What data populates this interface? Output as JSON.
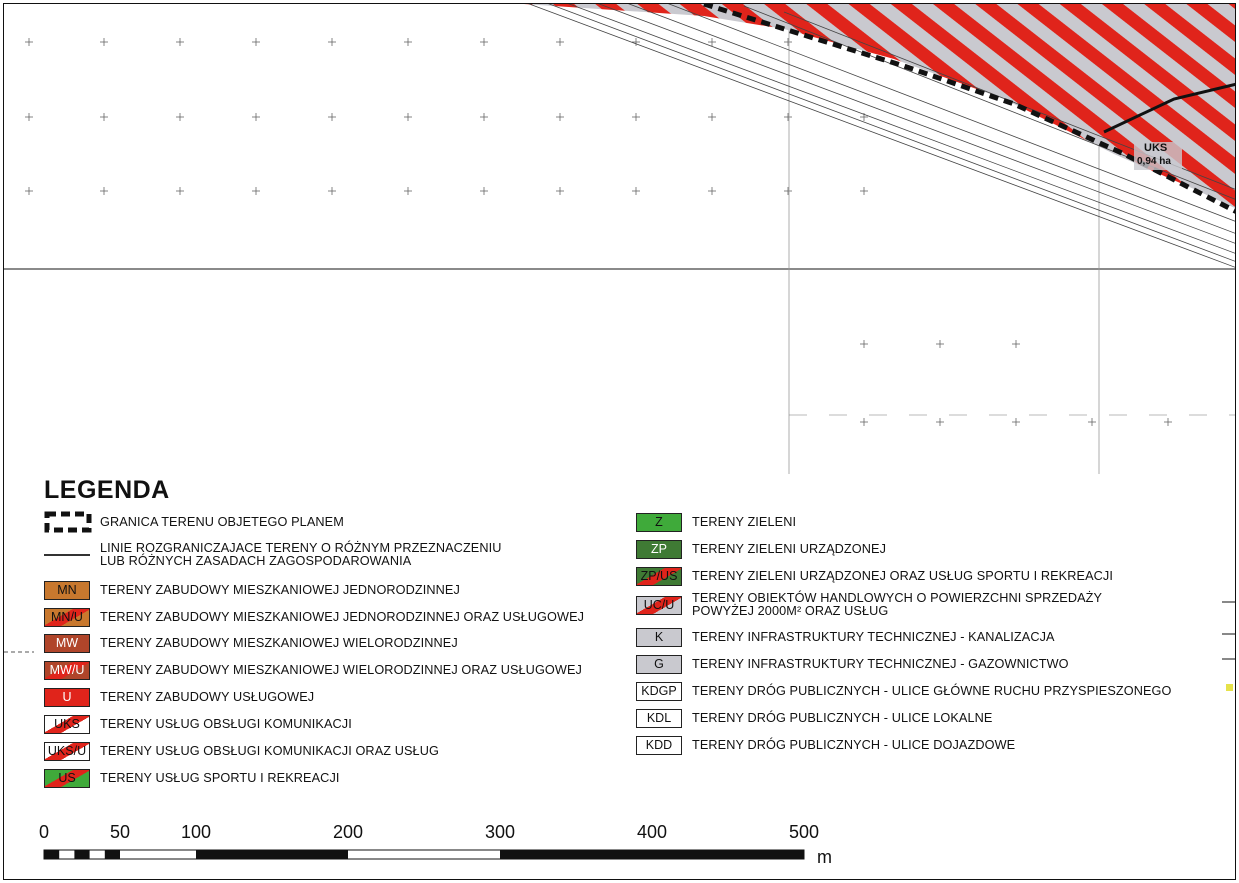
{
  "legend": {
    "title": "LEGENDA",
    "items_left": [
      {
        "code": "",
        "symbol": "boundary-dashed",
        "label": "GRANICA TERENU OBJETEGO PLANEM"
      },
      {
        "code": "",
        "symbol": "line",
        "label": "LINIE ROZGRANICZAJACE TERENY O RÓŻNYM PRZEZNACZENIU",
        "label2": "LUB RÓŻNYCH ZASADACH ZAGOSPODAROWANIA"
      },
      {
        "code": "MN",
        "fill": "#c8782e",
        "stripe": "",
        "label": "TERENY ZABUDOWY MIESZKANIOWEJ JEDNORODZINNEJ"
      },
      {
        "code": "MN/U",
        "fill": "#c8782e",
        "stripe": "#e0241b",
        "label": "TERENY ZABUDOWY MIESZKANIOWEJ JEDNORODZINNEJ ORAZ USŁUGOWEJ"
      },
      {
        "code": "MW",
        "fill": "#b0452a",
        "stripe": "",
        "label": "TERENY ZABUDOWY MIESZKANIOWEJ WIELORODZINNEJ"
      },
      {
        "code": "MW/U",
        "fill": "#b0452a",
        "stripe": "#e0241b",
        "label": "TERENY ZABUDOWY MIESZKANIOWEJ WIELORODZINNEJ ORAZ USŁUGOWEJ"
      },
      {
        "code": "U",
        "fill": "#e0241b",
        "stripe": "",
        "label": "TERENY ZABUDOWY USŁUGOWEJ"
      },
      {
        "code": "UKS",
        "fill": "#ffffff",
        "stripe": "#e0241b",
        "label": "TERENY USŁUG OBSŁUGI KOMUNIKACJI"
      },
      {
        "code": "UKS/U",
        "fill": "#ffffff",
        "stripe": "#e0241b",
        "label": "TERENY USŁUG OBSŁUGI KOMUNIKACJI ORAZ USŁUG"
      },
      {
        "code": "US",
        "fill": "#3faa3a",
        "stripe": "#e0241b",
        "label": "TERENY USŁUG SPORTU I REKREACJI"
      }
    ],
    "items_right": [
      {
        "code": "Z",
        "fill": "#3faa3a",
        "stripe": "",
        "label": "TERENY ZIELENI"
      },
      {
        "code": "ZP",
        "fill": "#3f7a34",
        "stripe": "",
        "label": "TERENY ZIELENI URZĄDZONEJ"
      },
      {
        "code": "ZP/US",
        "fill": "#3f7a34",
        "stripe": "#e0241b",
        "label": "TERENY ZIELENI URZĄDZONEJ ORAZ USŁUG SPORTU I REKREACJI"
      },
      {
        "code": "UC/U",
        "fill": "#c9c9cf",
        "stripe": "#e0241b",
        "label": "TERENY OBIEKTÓW HANDLOWYCH O POWIERZCHNI SPRZEDAŻY",
        "label2": "POWYŻEJ 2000M² ORAZ USŁUG"
      },
      {
        "code": "K",
        "fill": "#c9c9cf",
        "stripe": "",
        "label": "TERENY INFRASTRUKTURY TECHNICZNEJ - KANALIZACJA"
      },
      {
        "code": "G",
        "fill": "#c9c9cf",
        "stripe": "",
        "label": "TERENY INFRASTRUKTURY TECHNICZNEJ - GAZOWNICTWO"
      },
      {
        "code": "KDGP",
        "fill": "#ffffff",
        "stripe": "",
        "label": "TERENY DRÓG PUBLICZNYCH - ULICE GŁÓWNE RUCHU PRZYSPIESZONEGO"
      },
      {
        "code": "KDL",
        "fill": "#ffffff",
        "stripe": "",
        "label": "TERENY DRÓG PUBLICZNYCH - ULICE LOKALNE"
      },
      {
        "code": "KDD",
        "fill": "#ffffff",
        "stripe": "",
        "label": "TERENY DRÓG PUBLICZNYCH - ULICE DOJAZDOWE"
      }
    ]
  },
  "map_label": {
    "zone": "UKS",
    "area": "0,94 ha"
  },
  "scale_bar": {
    "ticks": [
      "0",
      "50",
      "100",
      "200",
      "300",
      "400",
      "500"
    ],
    "unit": "m"
  },
  "colors": {
    "stripe_red": "#e0241b",
    "hatch_gray": "#c9c9cf",
    "border": "#111111"
  }
}
